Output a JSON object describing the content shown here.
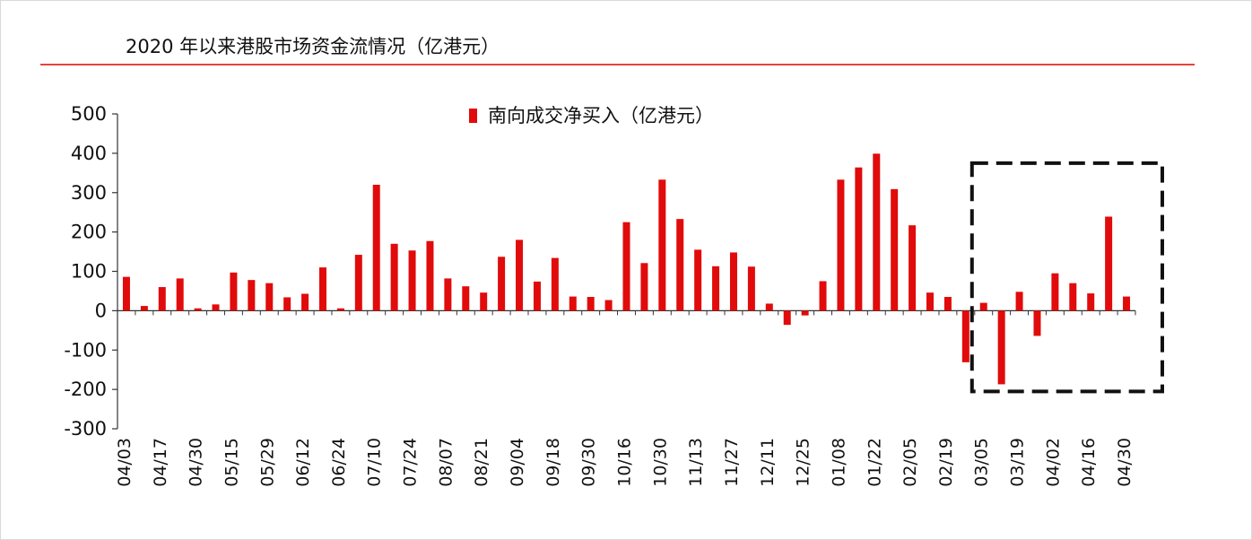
{
  "title": "2020 年以来港股市场资金流情况（亿港元）",
  "colors": {
    "bar": "#e10b0b",
    "title_rule": "#e8413c",
    "axis": "#333333",
    "highlight_box": "#111111"
  },
  "chart_data": {
    "type": "bar",
    "title": "",
    "xlabel": "",
    "ylabel": "",
    "ylim": [
      -300,
      500
    ],
    "yticks": [
      500,
      400,
      300,
      200,
      100,
      0,
      -100,
      -200,
      -300
    ],
    "legend_position": "top-center",
    "grid": false,
    "tick_labels": [
      "04/03",
      "04/17",
      "04/30",
      "05/15",
      "05/29",
      "06/12",
      "06/24",
      "07/10",
      "07/24",
      "08/07",
      "08/21",
      "09/04",
      "09/18",
      "09/30",
      "10/16",
      "10/30",
      "11/13",
      "11/27",
      "12/11",
      "12/25",
      "01/08",
      "01/22",
      "02/05",
      "02/19",
      "03/05",
      "03/19",
      "04/02",
      "04/16",
      "04/30"
    ],
    "series": [
      {
        "name": "南向成交净买入（亿港元）",
        "values": [
          86,
          12,
          60,
          82,
          6,
          16,
          97,
          78,
          70,
          34,
          43,
          110,
          6,
          142,
          320,
          170,
          153,
          177,
          82,
          62,
          46,
          137,
          180,
          74,
          134,
          36,
          35,
          27,
          225,
          121,
          333,
          233,
          155,
          113,
          148,
          112,
          18,
          -36,
          -12,
          75,
          333,
          364,
          399,
          309,
          217,
          46,
          35,
          -131,
          20,
          -187,
          48,
          -64,
          95,
          70,
          44,
          239,
          36
        ]
      }
    ],
    "highlight_box": {
      "from_index": 48,
      "to_index": 56,
      "y_top": 375,
      "y_bottom": -205
    }
  }
}
